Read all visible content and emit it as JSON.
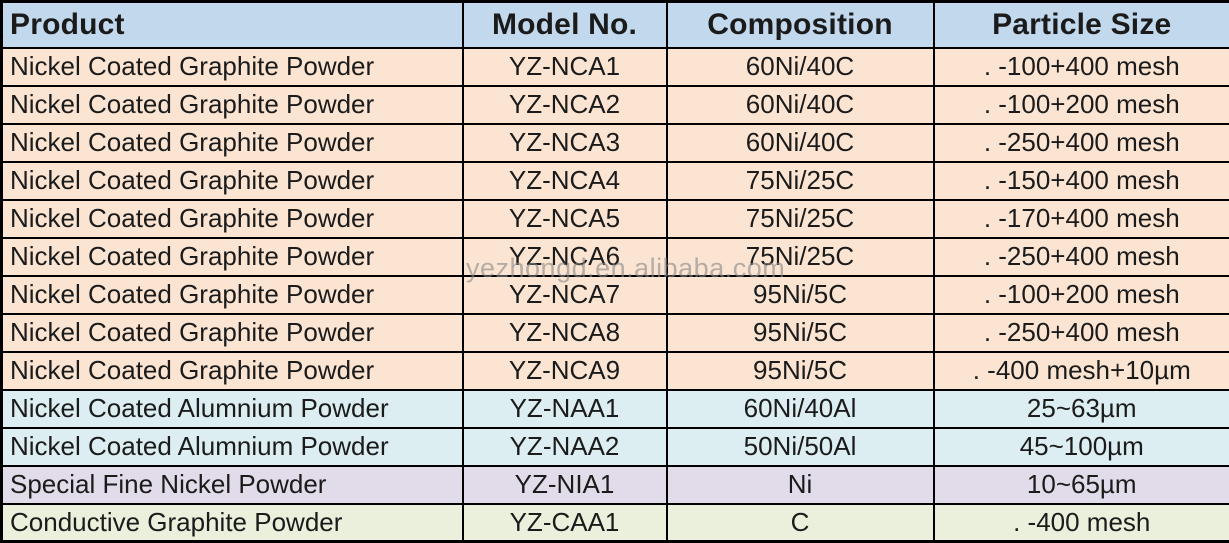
{
  "table": {
    "columns": [
      {
        "label": "Product",
        "align": "left"
      },
      {
        "label": "Model No.",
        "align": "center"
      },
      {
        "label": "Composition",
        "align": "center"
      },
      {
        "label": "Particle Size",
        "align": "center"
      }
    ],
    "rows": [
      {
        "product": "Nickel Coated Graphite Powder",
        "model": "YZ-NCA1",
        "composition": "60Ni/40C",
        "particle_size": ". -100+400 mesh",
        "color_key": "graphite"
      },
      {
        "product": "Nickel Coated Graphite Powder",
        "model": "YZ-NCA2",
        "composition": "60Ni/40C",
        "particle_size": ". -100+200 mesh",
        "color_key": "graphite"
      },
      {
        "product": "Nickel Coated Graphite Powder",
        "model": "YZ-NCA3",
        "composition": "60Ni/40C",
        "particle_size": ". -250+400 mesh",
        "color_key": "graphite"
      },
      {
        "product": "Nickel Coated Graphite Powder",
        "model": "YZ-NCA4",
        "composition": "75Ni/25C",
        "particle_size": ". -150+400 mesh",
        "color_key": "graphite"
      },
      {
        "product": "Nickel Coated Graphite Powder",
        "model": "YZ-NCA5",
        "composition": "75Ni/25C",
        "particle_size": ". -170+400 mesh",
        "color_key": "graphite"
      },
      {
        "product": "Nickel Coated Graphite Powder",
        "model": "YZ-NCA6",
        "composition": "75Ni/25C",
        "particle_size": ". -250+400 mesh",
        "color_key": "graphite"
      },
      {
        "product": "Nickel Coated Graphite Powder",
        "model": "YZ-NCA7",
        "composition": "95Ni/5C",
        "particle_size": ". -100+200 mesh",
        "color_key": "graphite"
      },
      {
        "product": "Nickel Coated Graphite Powder",
        "model": "YZ-NCA8",
        "composition": "95Ni/5C",
        "particle_size": ". -250+400 mesh",
        "color_key": "graphite"
      },
      {
        "product": "Nickel Coated Graphite Powder",
        "model": "YZ-NCA9",
        "composition": "95Ni/5C",
        "particle_size": ". -400 mesh+10µm",
        "color_key": "graphite"
      },
      {
        "product": "Nickel Coated Alumnium Powder",
        "model": "YZ-NAA1",
        "composition": "60Ni/40Al",
        "particle_size": "25~63µm",
        "color_key": "aluminium"
      },
      {
        "product": "Nickel Coated Alumnium Powder",
        "model": "YZ-NAA2",
        "composition": "50Ni/50Al",
        "particle_size": "45~100µm",
        "color_key": "aluminium"
      },
      {
        "product": "Special Fine Nickel Powder",
        "model": "YZ-NIA1",
        "composition": "Ni",
        "particle_size": "10~65µm",
        "color_key": "nickel"
      },
      {
        "product": "Conductive Graphite Powder",
        "model": "YZ-CAA1",
        "composition": "C",
        "particle_size": ". -400 mesh",
        "color_key": "conductive"
      }
    ]
  },
  "watermark": {
    "text": "yezhongd.en.alibaba.com"
  },
  "colors": {
    "header_bg": "#c2d8ec",
    "graphite_bg": "#fbe5d2",
    "aluminium_bg": "#dceef2",
    "nickel_bg": "#e2dcea",
    "conductive_bg": "#ebf0dc",
    "border": "#000000",
    "text": "#1b1b1b",
    "watermark": "#8a8a8a"
  }
}
